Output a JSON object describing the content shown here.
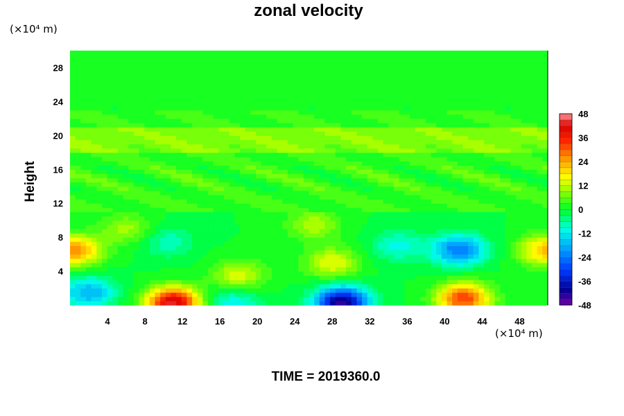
{
  "chart_data": {
    "type": "heatmap",
    "title": "zonal velocity",
    "ylabel": "Height",
    "xlabel": "",
    "x_unit": "(×10⁴ m)",
    "y_unit": "(×10⁴ m)",
    "xlim": [
      0,
      51
    ],
    "ylim": [
      0,
      30
    ],
    "x_ticks": [
      "4",
      "8",
      "12",
      "16",
      "20",
      "24",
      "28",
      "32",
      "36",
      "40",
      "44",
      "48"
    ],
    "y_ticks": [
      "4",
      "8",
      "12",
      "16",
      "20",
      "24",
      "28"
    ],
    "x_tick_values": [
      4,
      8,
      12,
      16,
      20,
      24,
      28,
      32,
      36,
      40,
      44,
      48
    ],
    "y_tick_values": [
      4,
      8,
      12,
      16,
      20,
      24,
      28
    ],
    "colorbar": {
      "range": [
        -48,
        48
      ],
      "step": 3,
      "tick_labels": [
        "48",
        "36",
        "24",
        "12",
        "0",
        "-12",
        "-24",
        "-36",
        "-48"
      ],
      "tick_values": [
        48,
        36,
        24,
        12,
        0,
        -12,
        -24,
        -36,
        -48
      ]
    },
    "features": [
      {
        "x": 0.5,
        "y": 6.5,
        "value": 26
      },
      {
        "x": 11,
        "y": 0.3,
        "value": 44
      },
      {
        "x": 18,
        "y": 3.5,
        "value": 14
      },
      {
        "x": 29,
        "y": 0.3,
        "value": -44
      },
      {
        "x": 28,
        "y": 5,
        "value": 15
      },
      {
        "x": 42,
        "y": 0.8,
        "value": 33
      },
      {
        "x": 41.5,
        "y": 6.5,
        "value": -24
      },
      {
        "x": 50.8,
        "y": 6.5,
        "value": 22
      },
      {
        "x": 10.5,
        "y": 7.5,
        "value": -8
      },
      {
        "x": 2,
        "y": 1.5,
        "value": -18
      },
      {
        "x": 17.5,
        "y": 0.3,
        "value": -12
      },
      {
        "x": 35,
        "y": 7,
        "value": -10
      },
      {
        "x": 6,
        "y": 9,
        "value": 10
      },
      {
        "x": 26,
        "y": 9.5,
        "value": 11
      }
    ],
    "time_label": "TIME",
    "time_value": "2019360.0"
  }
}
